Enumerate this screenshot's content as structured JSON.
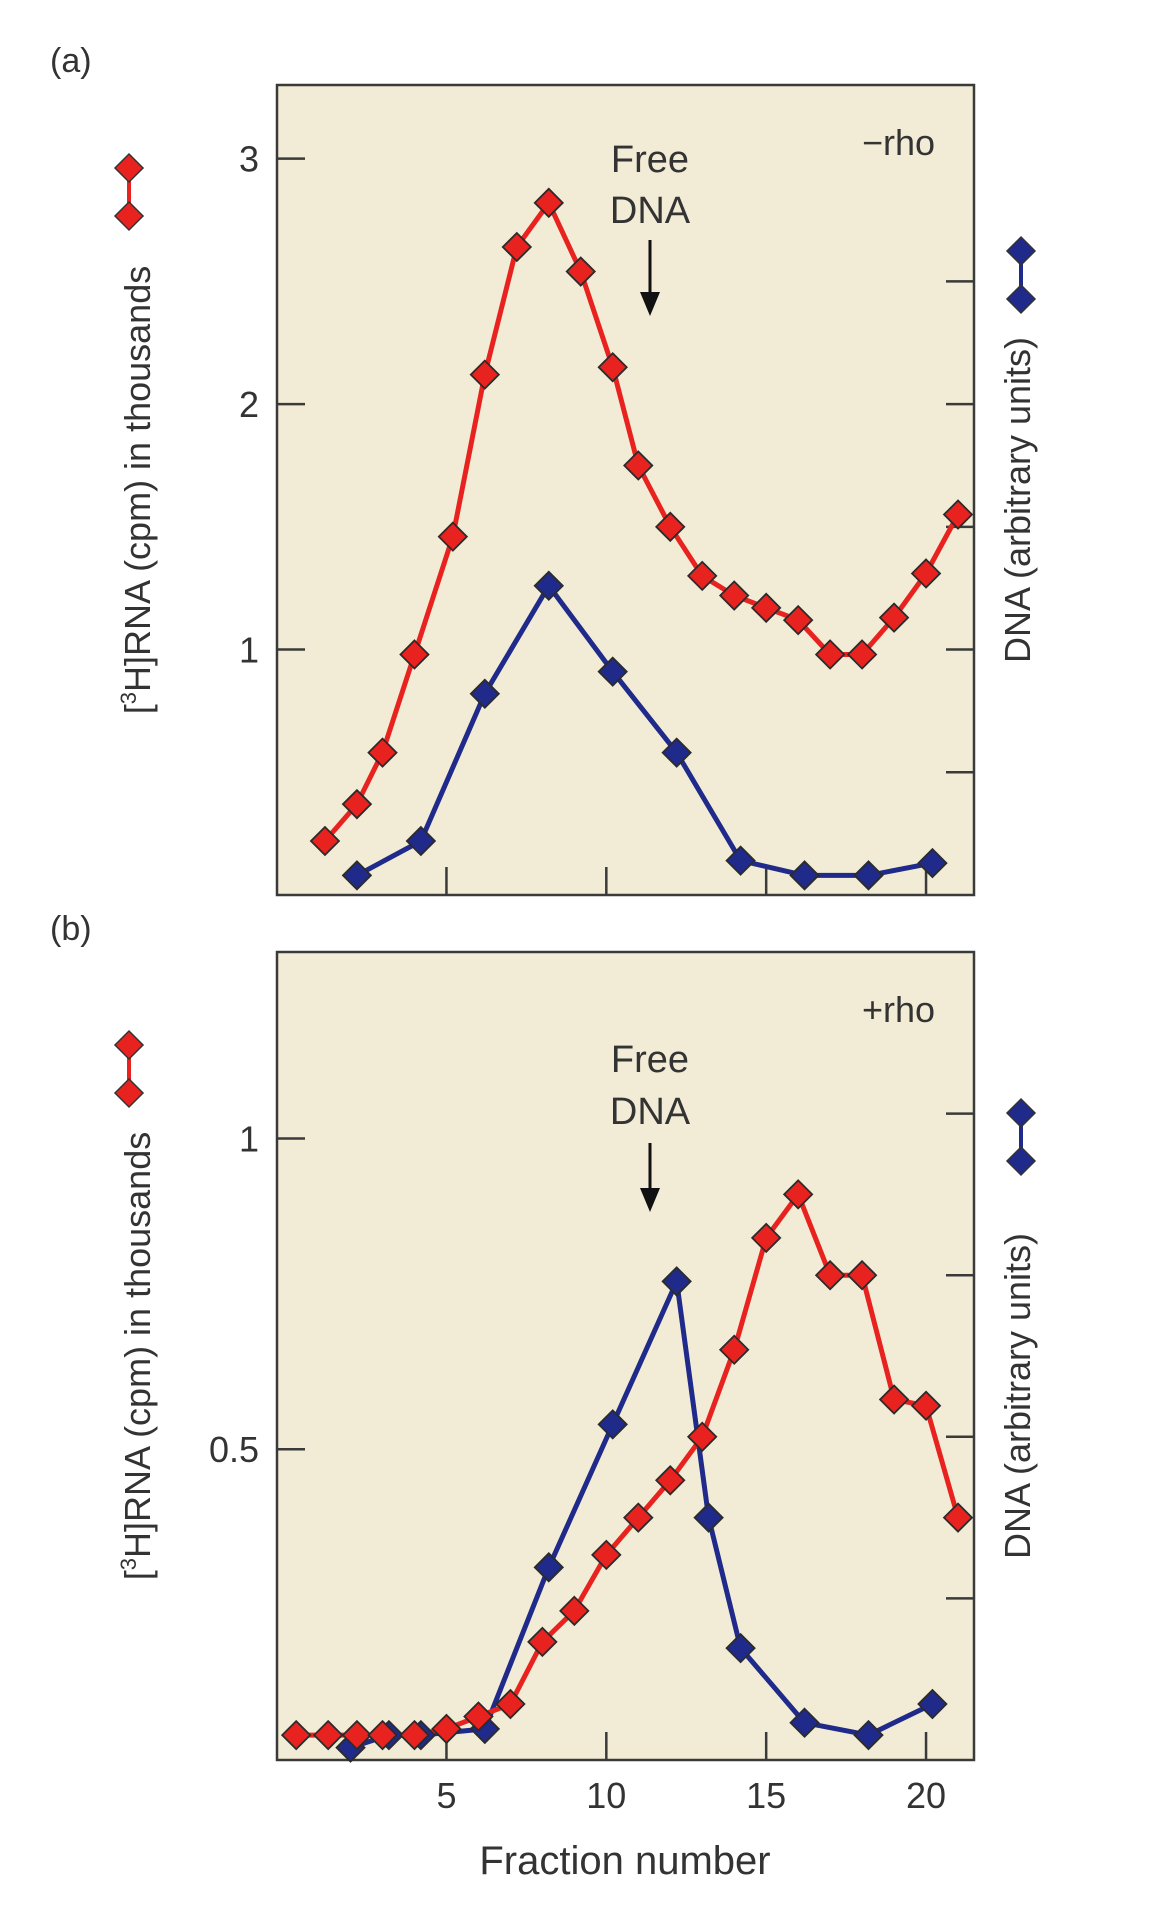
{
  "chart_data": [
    {
      "panel": "a",
      "type": "line",
      "panel_label": "(a)",
      "annotation": "−rho",
      "arrow_label_line1": "Free",
      "arrow_label_line2": "DNA",
      "arrow_x": 12,
      "xlim": [
        -0.3,
        21.5
      ],
      "ylim": [
        0,
        3.3
      ],
      "ylabel_prefix": "[",
      "ylabel_sup": "3",
      "ylabel_rest": "H]RNA (cpm) in thousands",
      "y2label": "DNA (arbitrary units)",
      "xlabel": "",
      "yticks": [
        1,
        2,
        3
      ],
      "ytick_labels": [
        "1",
        "2",
        "3"
      ],
      "xticks": [
        5,
        10,
        15,
        20
      ],
      "y2ticks": [
        0.5,
        1,
        1.5,
        2,
        2.5
      ],
      "series": [
        {
          "name": "[3H]RNA",
          "color": "#e8231f",
          "x": [
            1.2,
            2.2,
            3.0,
            4.0,
            5.2,
            6.2,
            7.2,
            8.2,
            9.2,
            10.2,
            11.0,
            12.0,
            13.0,
            14.0,
            15.0,
            16.0,
            17.0,
            18.0,
            19.0,
            20.0,
            21.0
          ],
          "y": [
            0.22,
            0.37,
            0.58,
            0.98,
            1.46,
            2.12,
            2.64,
            2.82,
            2.54,
            2.15,
            1.75,
            1.5,
            1.3,
            1.22,
            1.17,
            1.12,
            0.98,
            0.98,
            1.13,
            1.31,
            1.55
          ]
        },
        {
          "name": "DNA",
          "color": "#1f2a8a",
          "x": [
            2.2,
            4.2,
            6.2,
            8.2,
            10.2,
            12.2,
            14.2,
            16.2,
            18.2,
            20.2
          ],
          "y": [
            0.08,
            0.22,
            0.82,
            1.26,
            0.91,
            0.58,
            0.14,
            0.08,
            0.08,
            0.13
          ]
        }
      ]
    },
    {
      "panel": "b",
      "type": "line",
      "panel_label": "(b)",
      "annotation": "+rho",
      "arrow_label_line1": "Free",
      "arrow_label_line2": "DNA",
      "arrow_x": 12,
      "xlim": [
        -0.3,
        21.5
      ],
      "ylim": [
        0,
        1.3
      ],
      "ylabel_prefix": "[",
      "ylabel_sup": "3",
      "ylabel_rest": "H]RNA (cpm) in thousands",
      "y2label": "DNA (arbitrary units)",
      "xlabel": "Fraction number",
      "yticks": [
        0.5,
        1
      ],
      "ytick_labels": [
        "0.5",
        "1"
      ],
      "xticks": [
        5,
        10,
        15,
        20
      ],
      "xtick_labels": [
        "5",
        "10",
        "15",
        "20"
      ],
      "y2ticks": [
        0.2,
        0.4,
        0.6,
        0.8
      ],
      "series": [
        {
          "name": "[3H]RNA",
          "color": "#e8231f",
          "x": [
            0.3,
            1.3,
            2.2,
            3.0,
            4.0,
            5.0,
            6.0,
            7.0,
            8.0,
            9.0,
            10.0,
            11.0,
            12.0,
            13.0,
            14.0,
            15.0,
            16.0,
            17.0,
            18.0,
            19.0,
            20.0,
            21.0
          ],
          "y": [
            0.04,
            0.04,
            0.04,
            0.04,
            0.04,
            0.05,
            0.07,
            0.09,
            0.19,
            0.24,
            0.33,
            0.39,
            0.45,
            0.52,
            0.66,
            0.84,
            0.91,
            0.78,
            0.78,
            0.58,
            0.57,
            0.39
          ]
        },
        {
          "name": "DNA",
          "color": "#1f2a8a",
          "x": [
            2.0,
            3.2,
            4.2,
            6.2,
            8.2,
            10.2,
            12.2,
            13.2,
            14.2,
            16.2,
            18.2,
            20.2
          ],
          "y": [
            0.02,
            0.04,
            0.04,
            0.05,
            0.31,
            0.54,
            0.77,
            0.39,
            0.18,
            0.06,
            0.04,
            0.09
          ]
        }
      ]
    }
  ]
}
